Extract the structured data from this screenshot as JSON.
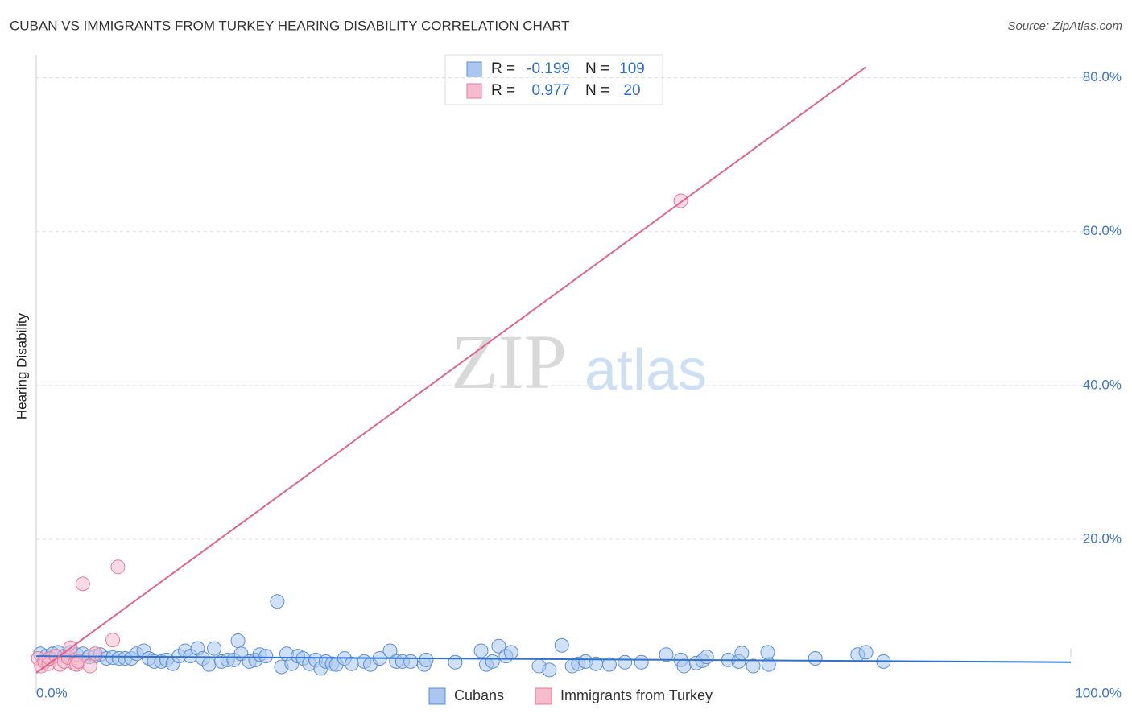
{
  "chart_data": {
    "type": "scatter",
    "title": "CUBAN VS IMMIGRANTS FROM TURKEY HEARING DISABILITY CORRELATION CHART",
    "source": "Source: ZipAtlas.com",
    "watermark": [
      "ZIP",
      "atlas"
    ],
    "y_label": "Hearing Disability",
    "stat_labels": [
      "R =",
      "N ="
    ],
    "xlim": [
      0,
      100
    ],
    "ylim": [
      0,
      83
    ],
    "xticks": [
      {
        "value": 0,
        "label": "0.0%"
      },
      {
        "value": 100,
        "label": "100.0%"
      }
    ],
    "yticks": [
      {
        "value": 20,
        "label": "20.0%"
      },
      {
        "value": 40,
        "label": "40.0%"
      },
      {
        "value": 60,
        "label": "60.0%"
      },
      {
        "value": 80,
        "label": "80.0%"
      }
    ],
    "grid": true,
    "series": [
      {
        "name": "Cubans",
        "color": "#5b8fd8",
        "fill": "#a9c7f0",
        "r": -0.199,
        "n": 109,
        "trend": {
          "x": [
            0,
            100
          ],
          "y": [
            4.8,
            4.0
          ]
        },
        "x": [
          0.4,
          1.0,
          1.6,
          2.1,
          2.7,
          3.3,
          3.9,
          4.5,
          5.1,
          5.7,
          6.2,
          6.8,
          7.4,
          8.0,
          8.6,
          9.2,
          9.7,
          10.4,
          10.9,
          11.4,
          12.1,
          12.6,
          13.2,
          13.8,
          14.4,
          14.9,
          15.6,
          16.1,
          16.7,
          17.2,
          17.9,
          18.5,
          19.1,
          19.5,
          19.8,
          20.6,
          21.2,
          21.6,
          22.2,
          23.3,
          23.7,
          24.2,
          24.7,
          25.3,
          25.8,
          26.4,
          27.0,
          27.5,
          28.0,
          28.6,
          29.0,
          29.8,
          30.5,
          31.7,
          32.3,
          33.2,
          34.2,
          34.8,
          35.4,
          36.2,
          37.5,
          37.7,
          40.5,
          43.0,
          43.5,
          44.1,
          44.7,
          45.4,
          45.9,
          48.6,
          49.6,
          50.8,
          51.8,
          52.4,
          53.1,
          54.1,
          55.4,
          56.9,
          58.5,
          60.9,
          62.3,
          62.6,
          63.8,
          64.4,
          64.8,
          66.9,
          67.9,
          68.2,
          69.3,
          70.7,
          70.8,
          75.3,
          79.4,
          80.2,
          81.9
        ],
        "values": [
          5.1,
          4.8,
          5.1,
          5.3,
          4.8,
          5.3,
          5.0,
          5.1,
          4.7,
          4.8,
          5.0,
          4.5,
          4.6,
          4.5,
          4.5,
          4.5,
          5.1,
          5.5,
          4.5,
          4.1,
          4.1,
          4.3,
          3.8,
          4.8,
          5.5,
          4.8,
          5.8,
          4.5,
          3.7,
          5.8,
          4.1,
          4.3,
          4.3,
          6.8,
          5.1,
          4.1,
          4.3,
          5.0,
          4.8,
          11.9,
          3.4,
          5.1,
          3.8,
          4.8,
          4.5,
          3.8,
          4.3,
          3.2,
          4.1,
          3.8,
          3.7,
          4.5,
          3.8,
          4.1,
          3.7,
          4.5,
          5.5,
          4.1,
          4.1,
          4.1,
          3.7,
          4.3,
          4.0,
          5.5,
          3.7,
          4.1,
          6.1,
          4.8,
          5.3,
          3.5,
          3.0,
          6.2,
          3.5,
          3.8,
          4.1,
          3.8,
          3.7,
          4.0,
          4.0,
          5.0,
          4.3,
          3.5,
          3.9,
          4.2,
          4.7,
          4.3,
          4.1,
          5.2,
          3.5,
          5.3,
          3.7,
          4.5,
          5.0,
          5.3,
          4.1
        ]
      },
      {
        "name": "Immigrants from Turkey",
        "color": "#e8799c",
        "fill": "#f6bccd",
        "r": 0.977,
        "n": 20,
        "trend": {
          "x": [
            0,
            80.2
          ],
          "y": [
            2.6,
            81.4
          ]
        },
        "x": [
          0.2,
          0.5,
          0.8,
          1.2,
          1.3,
          1.9,
          2.3,
          2.7,
          3.1,
          3.3,
          3.7,
          3.9,
          4.1,
          4.5,
          5.2,
          5.7,
          7.4,
          7.9,
          62.3
        ],
        "values": [
          4.5,
          3.5,
          4.1,
          3.8,
          4.5,
          4.8,
          3.7,
          4.1,
          4.6,
          5.9,
          3.8,
          3.7,
          4.1,
          14.2,
          3.5,
          5.1,
          6.9,
          16.4,
          64.0
        ]
      }
    ]
  }
}
